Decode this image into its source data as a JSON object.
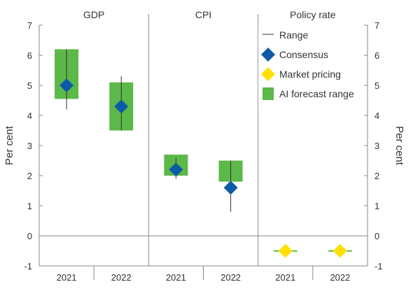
{
  "chart_data": {
    "type": "range",
    "panels": [
      {
        "title": "GDP",
        "categories": [
          "2021",
          "2022"
        ],
        "range": [
          [
            4.2,
            6.2
          ],
          [
            3.5,
            5.3
          ]
        ],
        "consensus": [
          5.0,
          4.3
        ],
        "market_pricing": [
          null,
          null
        ],
        "ai_forecast_range": [
          [
            4.55,
            6.2
          ],
          [
            3.5,
            5.1
          ]
        ]
      },
      {
        "title": "CPI",
        "categories": [
          "2021",
          "2022"
        ],
        "range": [
          [
            1.9,
            2.6
          ],
          [
            0.8,
            2.5
          ]
        ],
        "consensus": [
          2.2,
          1.6
        ],
        "market_pricing": [
          null,
          null
        ],
        "ai_forecast_range": [
          [
            2.0,
            2.7
          ],
          [
            1.8,
            2.5
          ]
        ]
      },
      {
        "title": "Policy rate",
        "categories": [
          "2021",
          "2022"
        ],
        "range": [
          [
            null,
            null
          ],
          [
            null,
            null
          ]
        ],
        "consensus": [
          null,
          null
        ],
        "market_pricing": [
          -0.5,
          -0.5
        ],
        "ai_forecast_range": [
          [
            -0.52,
            -0.48
          ],
          [
            -0.52,
            -0.48
          ]
        ]
      }
    ],
    "legend": [
      {
        "key": "range",
        "label": "Range"
      },
      {
        "key": "consensus",
        "label": "Consensus"
      },
      {
        "key": "market_pricing",
        "label": "Market pricing"
      },
      {
        "key": "ai_forecast_range",
        "label": "AI forecast range"
      }
    ],
    "y_ticks": [
      "7",
      "6",
      "5",
      "4",
      "3",
      "2",
      "1",
      "0",
      "-1"
    ],
    "ylim": [
      -1,
      7
    ],
    "ylabel_left": "Per cent",
    "ylabel_right": "Per cent",
    "legend_position": "top-right",
    "grid": false,
    "colors": {
      "range": "#333333",
      "consensus": "#0d5ba6",
      "market_pricing": "#ffe000",
      "ai_forecast_range": "#5cb848",
      "axis": "#888888"
    }
  }
}
